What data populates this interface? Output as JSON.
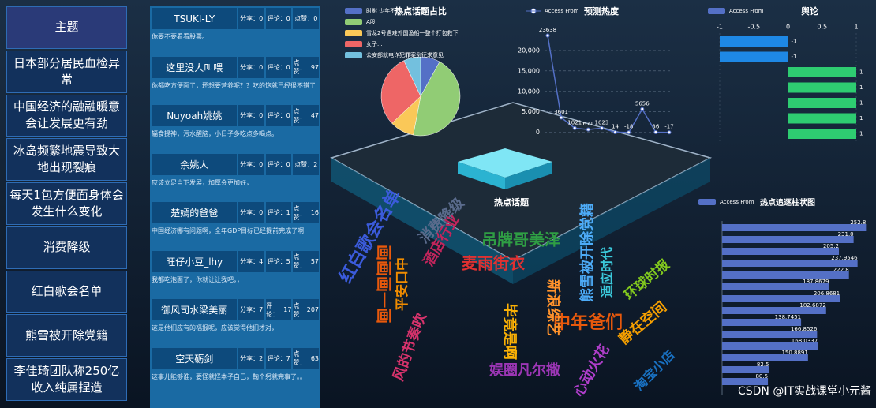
{
  "sidebar": {
    "header": "主题",
    "topics": [
      "日本部分居民血检异常",
      "中国经济的融融暖意会让发展更有劲",
      "冰岛频繁地震导致大地出现裂痕",
      "每天1包方便面身体会发生什么变化",
      "消费降级",
      "红白歌会名单",
      "熊雪被开除党籍",
      "李佳琦团队称250亿收入纯属捏造"
    ]
  },
  "posts": {
    "labels": {
      "share": "分享：",
      "comment": "评论：",
      "like": "点赞："
    },
    "items": [
      {
        "user": "TSUKI-LY",
        "shares": 0,
        "comments": 0,
        "likes": 0,
        "content": "你要不要看看股票。"
      },
      {
        "user": "这里没人叫喂",
        "shares": 0,
        "comments": 0,
        "likes": 97,
        "content": "你都吃方便面了，还想要营养呢？？吃的饱就已经很不错了"
      },
      {
        "user": "Nuyoah姚姚",
        "shares": 0,
        "comments": 0,
        "likes": 47,
        "content": "辐食提神，污水醒脑，小日子多吃点多喝点。"
      },
      {
        "user": "余姚人",
        "shares": 0,
        "comments": 0,
        "likes": 2,
        "content": "应该立足当下发展，加厚会更加好，"
      },
      {
        "user": "楚嫣的爸爸",
        "shares": 0,
        "comments": 1,
        "likes": 16,
        "content": "中国经济哪有问题啊，全年GDP目标已经提前完成了啊"
      },
      {
        "user": "旺仔小豆_lhy",
        "shares": 4,
        "comments": 5,
        "likes": 57,
        "content": "我都吃泡面了，你就让让我吧，，"
      },
      {
        "user": "御风司水梁美丽",
        "shares": 7,
        "comments": 17,
        "likes": 207,
        "content": "这是他们应有的福报呢，应该觉得他们才对，"
      },
      {
        "user": "空天砺剑",
        "shares": 2,
        "comments": 7,
        "likes": 63,
        "content": "这事儿能够谁，要怪就怪本子自己，鞠个躬就完事了。。"
      }
    ]
  },
  "pie_chart": {
    "type": "pie",
    "title": "热点话题占比",
    "categories": [
      "时影 少年不知",
      "A股",
      "雪龙2号遇难外国渔船一整个打包救下",
      "女子...",
      "公安部就电诈犯罪案例征求意见"
    ],
    "values": [
      8,
      45,
      10,
      30,
      7
    ],
    "colors": [
      "#5470c6",
      "#91cc75",
      "#fac858",
      "#ee6666",
      "#73c0de"
    ]
  },
  "line_chart": {
    "type": "line",
    "title": "预测热度",
    "legend": "Access From",
    "color": "#5470c6",
    "values": [
      23638,
      3601,
      1021,
      671,
      1023,
      14,
      -18,
      5656,
      36,
      -17
    ],
    "ylim": [
      -2000,
      25000
    ],
    "yticks": [
      0,
      {
        "value": 5000,
        "label": "5,000"
      },
      {
        "value": 10000,
        "label": "10,000"
      },
      {
        "value": 15000,
        "label": "15,000"
      },
      {
        "value": 20000,
        "label": "20,000"
      }
    ]
  },
  "opinion_chart": {
    "type": "bar",
    "title": "舆论",
    "legend": "Access From",
    "values": [
      -1,
      -1,
      1,
      1,
      1,
      1,
      1
    ],
    "colors": {
      "negative": "#1e88e5",
      "positive": "#2ecc71"
    },
    "xlim": [
      -1,
      1
    ],
    "xticks": [
      -1,
      -0.5,
      0,
      0.5,
      1
    ]
  },
  "trend_chart": {
    "type": "bar",
    "title": "热点追逐柱状图",
    "legend": "Access From",
    "color": "#5470c6",
    "values": [
      252.8,
      231.0,
      205.2,
      237.9546,
      222.8,
      187.8679,
      206.8681,
      182.6872,
      138.7451,
      166.8526,
      168.0337,
      150.8891,
      82.5,
      80.5
    ],
    "value_labels": [
      "252.8",
      "231.0",
      "205.2",
      "237.9546",
      "222.8",
      "187.8679",
      "206.8681",
      "182.6872",
      "138.7451",
      "166.8526",
      "168.0337",
      "150.8891",
      "82.5",
      "80.5"
    ],
    "xlim": [
      0,
      262
    ]
  },
  "word_cloud": {
    "title": "热点话题",
    "words": [
      {
        "text": "红白歌会名单",
        "color": "#3b5bdb"
      },
      {
        "text": "消费降级",
        "color": "#5a6b8c"
      },
      {
        "text": "吊牌哥美泽",
        "color": "#2f9e44"
      },
      {
        "text": "麦雨街衣",
        "color": "#e03131"
      },
      {
        "text": "酒店行业",
        "color": "#c2255c"
      },
      {
        "text": "画画画一画",
        "color": "#e8590c"
      },
      {
        "text": "平安口中",
        "color": "#f08c00"
      },
      {
        "text": "风的节奏吹",
        "color": "#d6336c"
      },
      {
        "text": "中年爸们",
        "color": "#e8590c"
      },
      {
        "text": "环球时报",
        "color": "#82c91e"
      },
      {
        "text": "静在空间",
        "color": "#f59f00"
      },
      {
        "text": "心动火花",
        "color": "#ae3ec9"
      },
      {
        "text": "毕竟是啊",
        "color": "#fab005"
      },
      {
        "text": "娱圈凡尔撒",
        "color": "#9c36b5"
      },
      {
        "text": "新浪综艺",
        "color": "#ff922b"
      },
      {
        "text": "熊雪被开除党籍",
        "color": "#4dabf7"
      },
      {
        "text": "适应时代",
        "color": "#3bc9db"
      },
      {
        "text": "淘宝小店",
        "color": "#1971c2"
      }
    ]
  },
  "watermark": "CSDN @IT实战课堂小元酱"
}
